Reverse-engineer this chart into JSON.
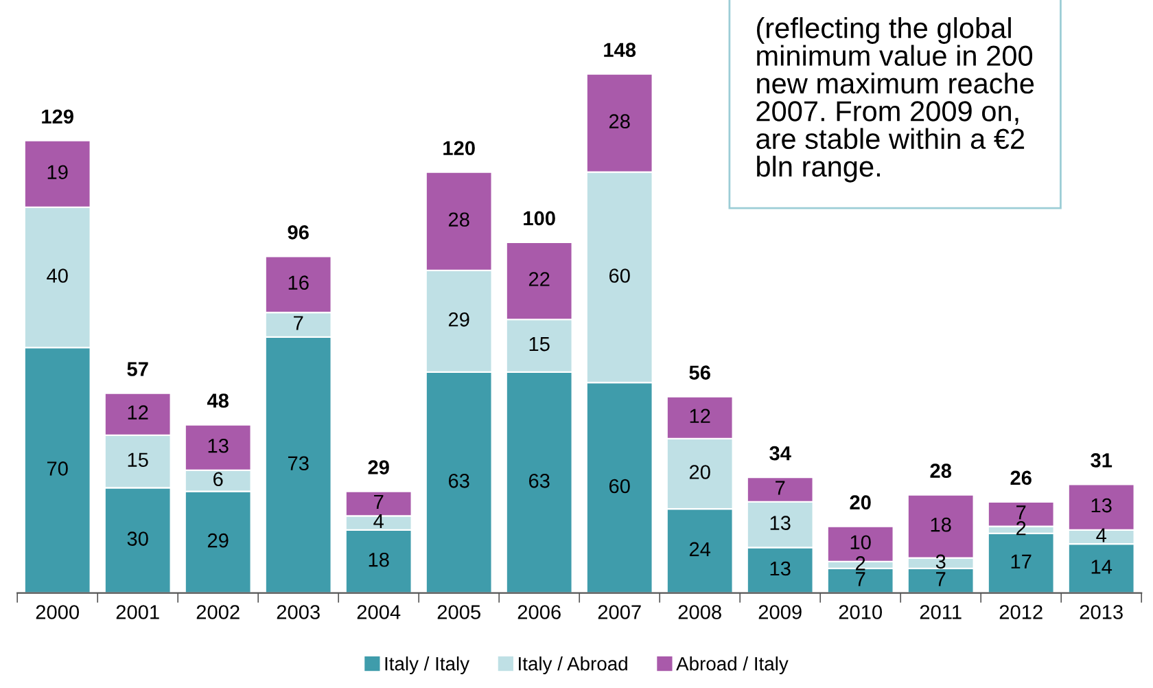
{
  "chart_data": {
    "type": "bar",
    "stacked": true,
    "data_labels": true,
    "grid": false,
    "legend": "bottom",
    "categories": [
      "2000",
      "2001",
      "2002",
      "2003",
      "2004",
      "2005",
      "2006",
      "2007",
      "2008",
      "2009",
      "2010",
      "2011",
      "2012",
      "2013"
    ],
    "series": [
      {
        "name": "Italy / Italy",
        "color": "#3f9cab",
        "values": [
          70,
          30,
          29,
          73,
          18,
          63,
          63,
          60,
          24,
          13,
          7,
          7,
          17,
          14
        ]
      },
      {
        "name": "Italy / Abroad",
        "color": "#bfe0e5",
        "values": [
          40,
          15,
          6,
          7,
          4,
          29,
          15,
          60,
          20,
          13,
          2,
          3,
          2,
          4
        ]
      },
      {
        "name": "Abroad / Italy",
        "color": "#a95aaa",
        "values": [
          19,
          12,
          13,
          16,
          7,
          28,
          22,
          28,
          12,
          7,
          10,
          18,
          7,
          13
        ]
      }
    ],
    "totals": [
      "129",
      "57",
      "48",
      "96",
      "29",
      "120",
      "100",
      "148",
      "56",
      "34",
      "20",
      "28",
      "26",
      "31"
    ],
    "annotations": [
      "(reflecting the global\nminimum value in 200\nnew maximum reache\n2007. From 2009 on,\nare stable within a €2\nbln range."
    ]
  }
}
